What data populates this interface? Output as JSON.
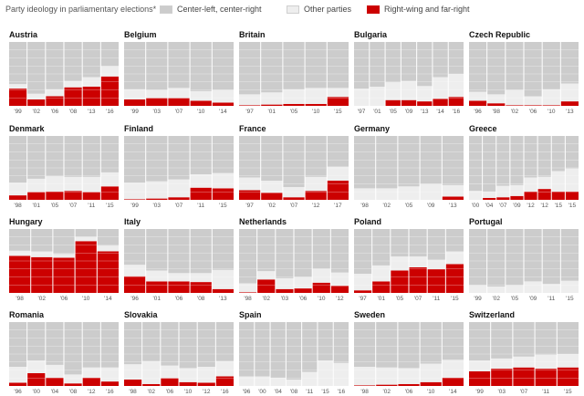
{
  "legend": {
    "title": "Party ideology in parliamentary elections*",
    "items": [
      {
        "label": "Center-left, center-right",
        "color": "#cccccc"
      },
      {
        "label": "Other parties",
        "color": "#eeeeee"
      },
      {
        "label": "Right-wing and far-right",
        "color": "#cc0000"
      }
    ]
  },
  "chart_data": [
    {
      "type": "bar",
      "country": "Austria",
      "categories": [
        "'99",
        "'02",
        "'06",
        "'08",
        "'13",
        "'16"
      ],
      "series": [
        {
          "name": "Right-wing and far-right",
          "values": [
            27,
            10,
            15,
            29,
            30,
            46
          ]
        },
        {
          "name": "Other parties",
          "values": [
            7,
            9,
            11,
            10,
            15,
            16
          ]
        },
        {
          "name": "Center-left, center-right",
          "values": [
            66,
            81,
            74,
            61,
            55,
            38
          ]
        }
      ]
    },
    {
      "type": "bar",
      "country": "Belgium",
      "categories": [
        "'99",
        "'03",
        "'07",
        "'10",
        "'14"
      ],
      "series": [
        {
          "name": "Right-wing and far-right",
          "values": [
            10,
            12,
            12,
            8,
            5
          ]
        },
        {
          "name": "Other parties",
          "values": [
            16,
            13,
            16,
            15,
            20
          ]
        },
        {
          "name": "Center-left, center-right",
          "values": [
            74,
            75,
            72,
            77,
            75
          ]
        }
      ]
    },
    {
      "type": "bar",
      "country": "Britain",
      "categories": [
        "'97",
        "'01",
        "'05",
        "'10",
        "'15"
      ],
      "series": [
        {
          "name": "Right-wing and far-right",
          "values": [
            1,
            2,
            3,
            3,
            14
          ]
        },
        {
          "name": "Other parties",
          "values": [
            17,
            19,
            23,
            25,
            14
          ]
        },
        {
          "name": "Center-left, center-right",
          "values": [
            82,
            79,
            74,
            72,
            72
          ]
        }
      ]
    },
    {
      "type": "bar",
      "country": "Bulgaria",
      "categories": [
        "'97",
        "'01",
        "'05",
        "'09",
        "'13",
        "'14",
        "'16"
      ],
      "series": [
        {
          "name": "Right-wing and far-right",
          "values": [
            0,
            0,
            9,
            9,
            7,
            11,
            14
          ]
        },
        {
          "name": "Other parties",
          "values": [
            27,
            30,
            28,
            30,
            24,
            34,
            36
          ]
        },
        {
          "name": "Center-left, center-right",
          "values": [
            73,
            70,
            63,
            61,
            69,
            55,
            50
          ]
        }
      ]
    },
    {
      "type": "bar",
      "country": "Czech Republic",
      "categories": [
        "'96",
        "'98",
        "'02",
        "'06",
        "'10",
        "'13"
      ],
      "series": [
        {
          "name": "Right-wing and far-right",
          "values": [
            8,
            4,
            1,
            1,
            1,
            7
          ]
        },
        {
          "name": "Other parties",
          "values": [
            14,
            14,
            24,
            14,
            25,
            28
          ]
        },
        {
          "name": "Center-left, center-right",
          "values": [
            78,
            82,
            75,
            85,
            74,
            65
          ]
        }
      ]
    },
    {
      "type": "bar",
      "country": "Denmark",
      "categories": [
        "'98",
        "'01",
        "'05",
        "'07",
        "'11",
        "'15"
      ],
      "series": [
        {
          "name": "Right-wing and far-right",
          "values": [
            7,
            12,
            13,
            14,
            12,
            21
          ]
        },
        {
          "name": "Other parties",
          "values": [
            20,
            21,
            24,
            22,
            24,
            22
          ]
        },
        {
          "name": "Center-left, center-right",
          "values": [
            73,
            67,
            63,
            64,
            64,
            57
          ]
        }
      ]
    },
    {
      "type": "bar",
      "country": "Finland",
      "categories": [
        "'99",
        "'03",
        "'07",
        "'11",
        "'15"
      ],
      "series": [
        {
          "name": "Right-wing and far-right",
          "values": [
            1,
            2,
            4,
            19,
            18
          ]
        },
        {
          "name": "Other parties",
          "values": [
            26,
            27,
            28,
            21,
            24
          ]
        },
        {
          "name": "Center-left, center-right",
          "values": [
            73,
            71,
            68,
            60,
            58
          ]
        }
      ]
    },
    {
      "type": "bar",
      "country": "France",
      "categories": [
        "'97",
        "'02",
        "'07",
        "'12",
        "'17"
      ],
      "series": [
        {
          "name": "Right-wing and far-right",
          "values": [
            15,
            11,
            4,
            14,
            30
          ]
        },
        {
          "name": "Other parties",
          "values": [
            20,
            19,
            16,
            22,
            22
          ]
        },
        {
          "name": "Center-left, center-right",
          "values": [
            65,
            70,
            80,
            64,
            48
          ]
        }
      ]
    },
    {
      "type": "bar",
      "country": "Germany",
      "categories": [
        "'98",
        "'02",
        "'05",
        "'09",
        "'13"
      ],
      "series": [
        {
          "name": "Right-wing and far-right",
          "values": [
            0,
            0,
            0,
            0,
            5
          ]
        },
        {
          "name": "Other parties",
          "values": [
            18,
            18,
            21,
            25,
            18
          ]
        },
        {
          "name": "Center-left, center-right",
          "values": [
            82,
            82,
            79,
            75,
            77
          ]
        }
      ]
    },
    {
      "type": "bar",
      "country": "Greece",
      "categories": [
        "'00",
        "'04",
        "'07",
        "'09",
        "'12",
        "'12",
        "'15",
        "'15"
      ],
      "series": [
        {
          "name": "Right-wing and far-right",
          "values": [
            0,
            3,
            4,
            6,
            13,
            17,
            13,
            13
          ]
        },
        {
          "name": "Other parties",
          "values": [
            14,
            10,
            18,
            17,
            22,
            19,
            32,
            36
          ]
        },
        {
          "name": "Center-left, center-right",
          "values": [
            86,
            87,
            78,
            77,
            65,
            64,
            55,
            51
          ]
        }
      ]
    },
    {
      "type": "bar",
      "country": "Hungary",
      "categories": [
        "'98",
        "'02",
        "'06",
        "'10",
        "'14"
      ],
      "series": [
        {
          "name": "Right-wing and far-right",
          "values": [
            58,
            56,
            55,
            81,
            65
          ]
        },
        {
          "name": "Other parties",
          "values": [
            8,
            9,
            6,
            7,
            9
          ]
        },
        {
          "name": "Center-left, center-right",
          "values": [
            34,
            35,
            39,
            12,
            26
          ]
        }
      ]
    },
    {
      "type": "bar",
      "country": "Italy",
      "categories": [
        "'96",
        "'01",
        "'06",
        "'08",
        "'13"
      ],
      "series": [
        {
          "name": "Right-wing and far-right",
          "values": [
            26,
            18,
            18,
            17,
            6
          ]
        },
        {
          "name": "Other parties",
          "values": [
            18,
            17,
            13,
            14,
            30
          ]
        },
        {
          "name": "Center-left, center-right",
          "values": [
            56,
            65,
            69,
            69,
            64
          ]
        }
      ]
    },
    {
      "type": "bar",
      "country": "Netherlands",
      "categories": [
        "'98",
        "'02",
        "'03",
        "'06",
        "'10",
        "'12"
      ],
      "series": [
        {
          "name": "Right-wing and far-right",
          "values": [
            1,
            21,
            6,
            7,
            16,
            11
          ]
        },
        {
          "name": "Other parties",
          "values": [
            14,
            13,
            17,
            18,
            22,
            21
          ]
        },
        {
          "name": "Center-left, center-right",
          "values": [
            85,
            66,
            77,
            75,
            62,
            68
          ]
        }
      ]
    },
    {
      "type": "bar",
      "country": "Poland",
      "categories": [
        "'97",
        "'01",
        "'05",
        "'07",
        "'11",
        "'15"
      ],
      "series": [
        {
          "name": "Right-wing and far-right",
          "values": [
            4,
            18,
            35,
            40,
            37,
            45
          ]
        },
        {
          "name": "Other parties",
          "values": [
            26,
            25,
            22,
            17,
            15,
            20
          ]
        },
        {
          "name": "Center-left, center-right",
          "values": [
            70,
            57,
            43,
            43,
            48,
            35
          ]
        }
      ]
    },
    {
      "type": "bar",
      "country": "Portugal",
      "categories": [
        "'99",
        "'02",
        "'05",
        "'09",
        "'11",
        "'15"
      ],
      "series": [
        {
          "name": "Right-wing and far-right",
          "values": [
            0,
            0,
            0,
            0,
            0,
            0
          ]
        },
        {
          "name": "Other parties",
          "values": [
            12,
            10,
            12,
            18,
            14,
            19
          ]
        },
        {
          "name": "Center-left, center-right",
          "values": [
            88,
            90,
            88,
            82,
            86,
            81
          ]
        }
      ]
    },
    {
      "type": "bar",
      "country": "Romania",
      "categories": [
        "'96",
        "'00",
        "'04",
        "'08",
        "'12",
        "'16"
      ],
      "series": [
        {
          "name": "Right-wing and far-right",
          "values": [
            5,
            20,
            13,
            4,
            13,
            7
          ]
        },
        {
          "name": "Other parties",
          "values": [
            25,
            20,
            20,
            14,
            16,
            22
          ]
        },
        {
          "name": "Center-left, center-right",
          "values": [
            70,
            60,
            67,
            82,
            71,
            71
          ]
        }
      ]
    },
    {
      "type": "bar",
      "country": "Slovakia",
      "categories": [
        "'98",
        "'02",
        "'06",
        "'10",
        "'12",
        "'16"
      ],
      "series": [
        {
          "name": "Right-wing and far-right",
          "values": [
            10,
            3,
            12,
            6,
            5,
            15
          ]
        },
        {
          "name": "Other parties",
          "values": [
            24,
            36,
            20,
            22,
            25,
            24
          ]
        },
        {
          "name": "Center-left, center-right",
          "values": [
            66,
            61,
            68,
            72,
            70,
            61
          ]
        }
      ]
    },
    {
      "type": "bar",
      "country": "Spain",
      "categories": [
        "'96",
        "'00",
        "'04",
        "'08",
        "'11",
        "'15",
        "'16"
      ],
      "series": [
        {
          "name": "Right-wing and far-right",
          "values": [
            0,
            0,
            0,
            0,
            0,
            0,
            0
          ]
        },
        {
          "name": "Other parties",
          "values": [
            15,
            15,
            13,
            10,
            22,
            40,
            36
          ]
        },
        {
          "name": "Center-left, center-right",
          "values": [
            85,
            85,
            87,
            90,
            78,
            60,
            64
          ]
        }
      ]
    },
    {
      "type": "bar",
      "country": "Sweden",
      "categories": [
        "'98",
        "'02",
        "'06",
        "'10",
        "'14"
      ],
      "series": [
        {
          "name": "Right-wing and far-right",
          "values": [
            1,
            2,
            3,
            6,
            13
          ]
        },
        {
          "name": "Other parties",
          "values": [
            29,
            27,
            25,
            29,
            28
          ]
        },
        {
          "name": "Center-left, center-right",
          "values": [
            70,
            71,
            72,
            65,
            59
          ]
        }
      ]
    },
    {
      "type": "bar",
      "country": "Switzerland",
      "categories": [
        "'99",
        "'03",
        "'07",
        "'11",
        "'15"
      ],
      "series": [
        {
          "name": "Right-wing and far-right",
          "values": [
            23,
            27,
            29,
            27,
            29
          ]
        },
        {
          "name": "Other parties",
          "values": [
            17,
            16,
            17,
            22,
            21
          ]
        },
        {
          "name": "Center-left, center-right",
          "values": [
            60,
            57,
            54,
            51,
            50
          ]
        }
      ]
    }
  ]
}
